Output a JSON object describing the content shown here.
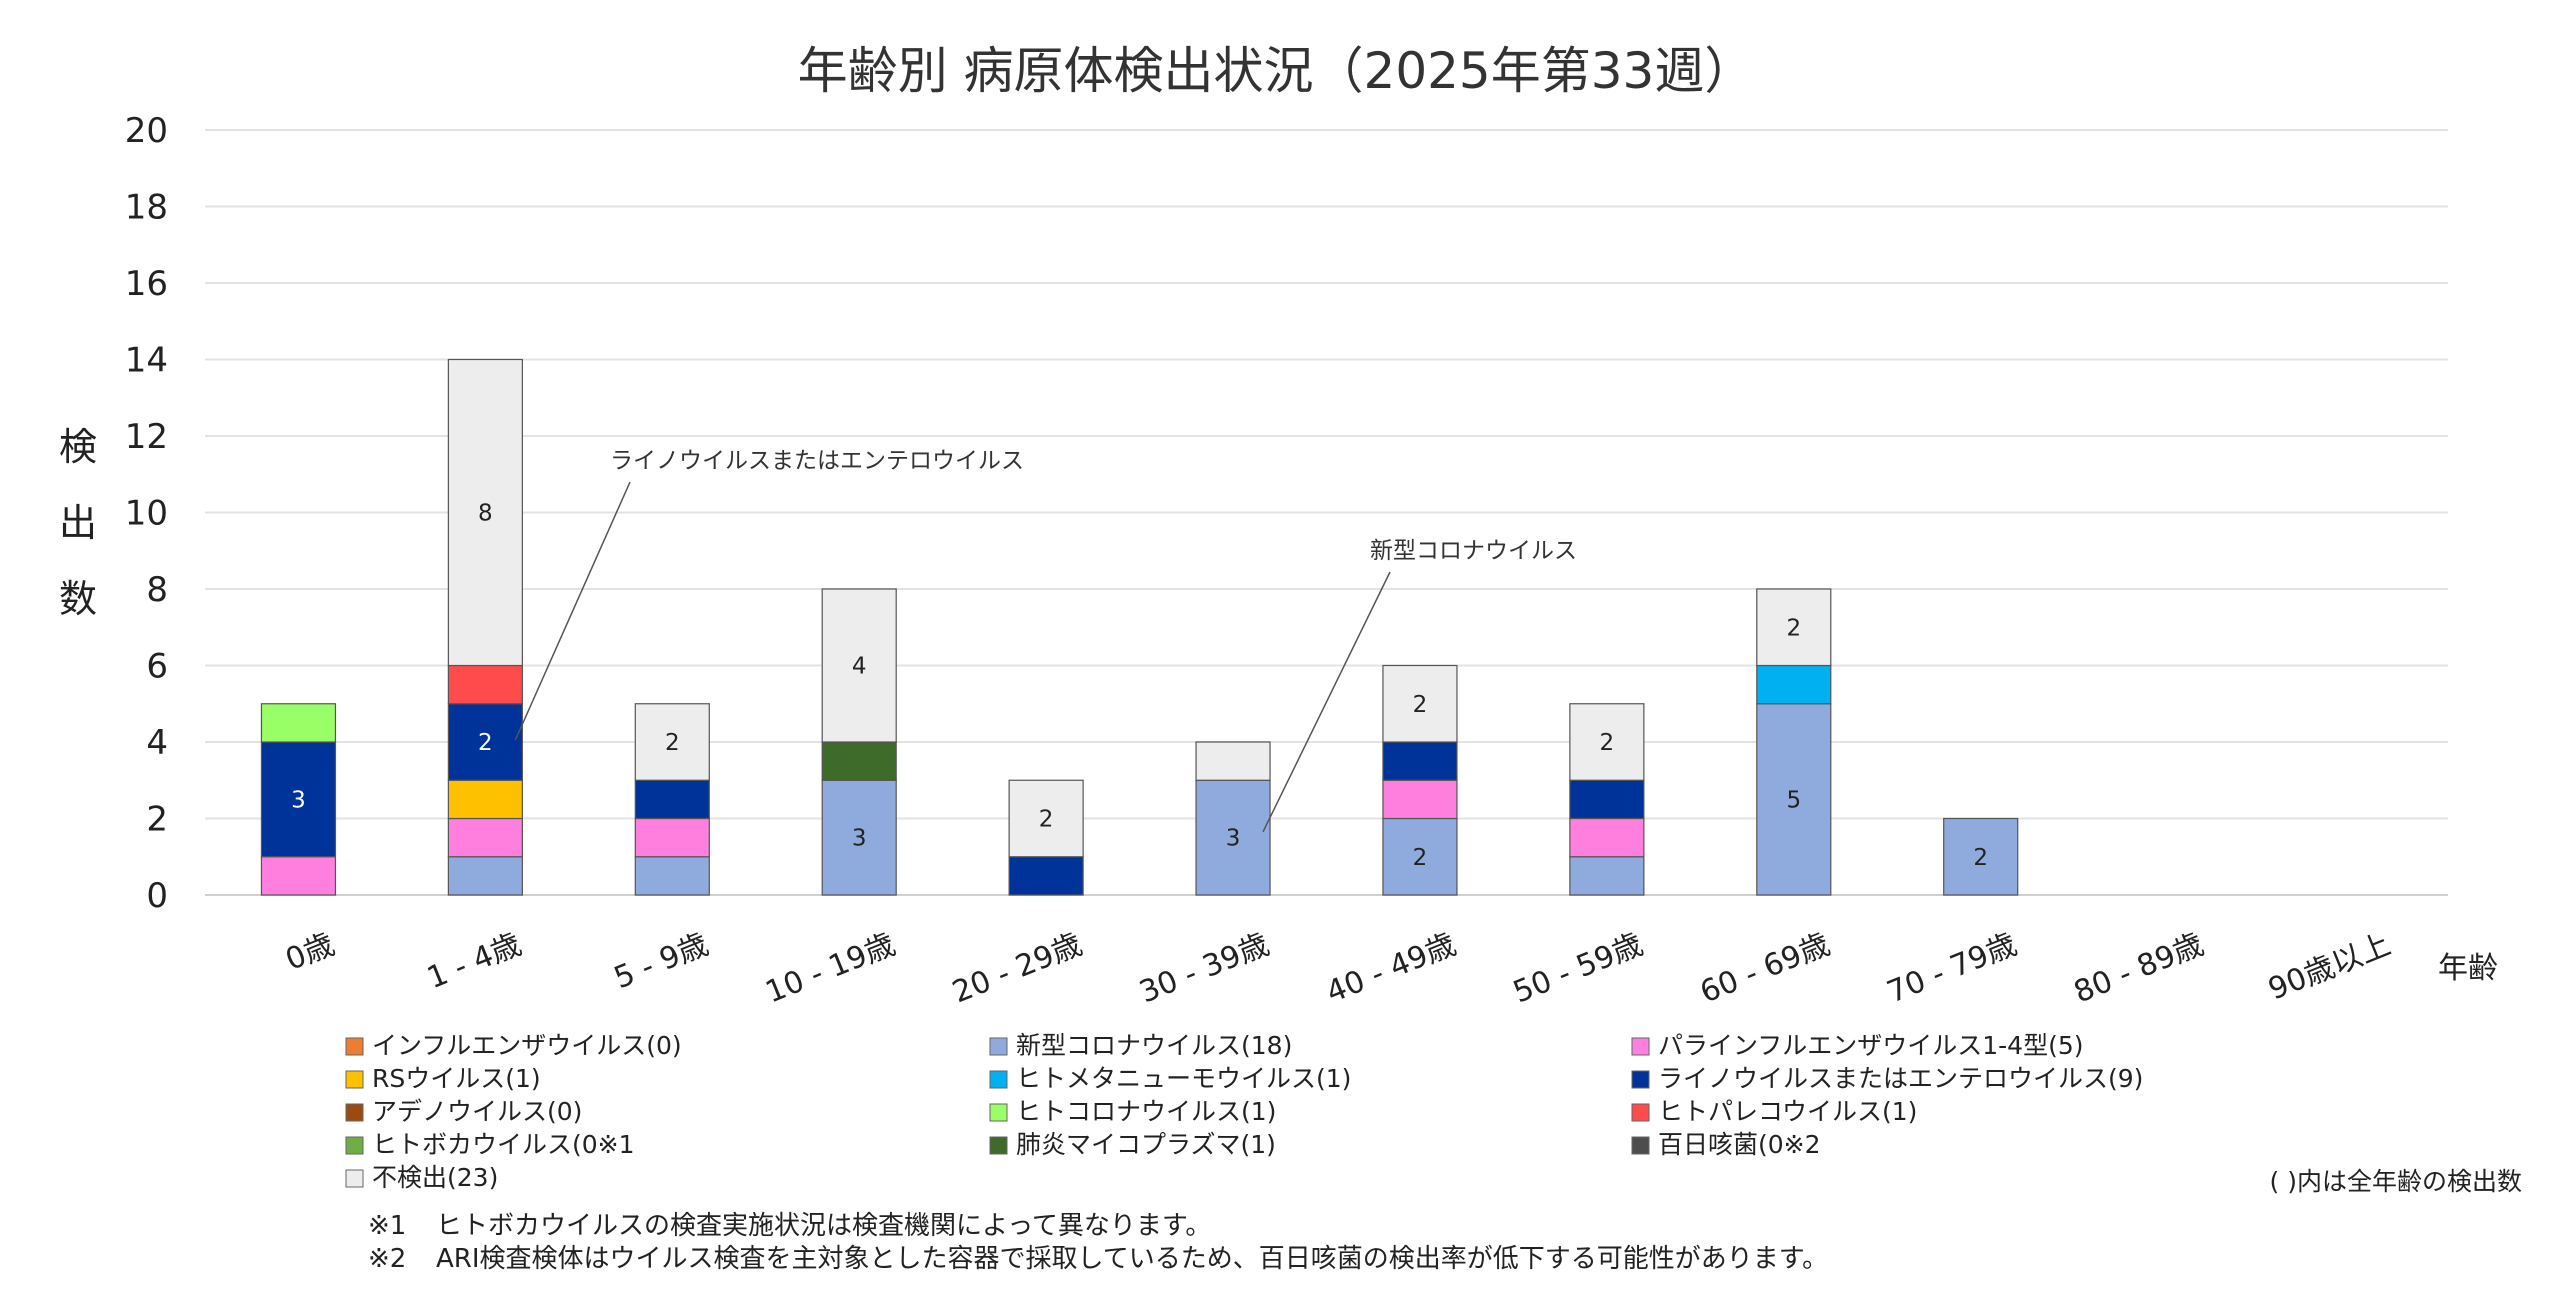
{
  "chart_data": {
    "type": "bar",
    "stacked": true,
    "title": "年齢別 病原体検出状況（2025年第33週）",
    "ylabel": "検出数",
    "xlabel": "年齢",
    "ylim": [
      0,
      20
    ],
    "yticks": [
      0,
      2,
      4,
      6,
      8,
      10,
      12,
      14,
      16,
      18,
      20
    ],
    "grid": true,
    "categories": [
      "0歳",
      "1 - 4歳",
      "5 - 9歳",
      "10 - 19歳",
      "20 - 29歳",
      "30 - 39歳",
      "40 - 49歳",
      "50 - 59歳",
      "60 - 69歳",
      "70 - 79歳",
      "80 - 89歳",
      "90歳以上"
    ],
    "series": [
      {
        "name": "インフルエンザウイルス(0)",
        "color": "#ED7D31",
        "values": [
          0,
          0,
          0,
          0,
          0,
          0,
          0,
          0,
          0,
          0,
          0,
          0
        ],
        "labels": [
          "",
          "",
          "",
          "",
          "",
          "",
          "",
          "",
          "",
          "",
          "",
          ""
        ],
        "label_color": "#ffffff"
      },
      {
        "name": "新型コロナウイルス(18)",
        "color": "#8FAADC",
        "values": [
          0,
          1,
          1,
          3,
          0,
          3,
          2,
          1,
          5,
          2,
          0,
          0
        ],
        "labels": [
          "",
          "",
          "",
          "3",
          "",
          "3",
          "2",
          "",
          "5",
          "2",
          "",
          ""
        ],
        "label_color": "#222222"
      },
      {
        "name": "パラインフルエンザウイルス1-4型(5)",
        "color": "#FF7FDF",
        "values": [
          1,
          1,
          1,
          0,
          0,
          0,
          1,
          1,
          0,
          0,
          0,
          0
        ],
        "labels": [
          "",
          "",
          "",
          "",
          "",
          "",
          "",
          "",
          "",
          "",
          "",
          ""
        ],
        "label_color": "#222222"
      },
      {
        "name": "RSウイルス(1)",
        "color": "#FFC000",
        "values": [
          0,
          1,
          0,
          0,
          0,
          0,
          0,
          0,
          0,
          0,
          0,
          0
        ],
        "labels": [
          "",
          "",
          "",
          "",
          "",
          "",
          "",
          "",
          "",
          "",
          "",
          ""
        ],
        "label_color": "#222222"
      },
      {
        "name": "ヒトメタニューモウイルス(1)",
        "color": "#00B0F0",
        "values": [
          0,
          0,
          0,
          0,
          0,
          0,
          0,
          0,
          1,
          0,
          0,
          0
        ],
        "labels": [
          "",
          "",
          "",
          "",
          "",
          "",
          "",
          "",
          "",
          "",
          "",
          ""
        ],
        "label_color": "#222222"
      },
      {
        "name": "ライノウイルスまたはエンテロウイルス(9)",
        "color": "#003399",
        "values": [
          3,
          2,
          1,
          0,
          1,
          0,
          1,
          1,
          0,
          0,
          0,
          0
        ],
        "labels": [
          "3",
          "2",
          "",
          "",
          "",
          "",
          "",
          "",
          "",
          "",
          "",
          ""
        ],
        "label_color": "#ffffff"
      },
      {
        "name": "アデノウイルス(0)",
        "color": "#9C4A0E",
        "values": [
          0,
          0,
          0,
          0,
          0,
          0,
          0,
          0,
          0,
          0,
          0,
          0
        ],
        "labels": [
          "",
          "",
          "",
          "",
          "",
          "",
          "",
          "",
          "",
          "",
          "",
          ""
        ],
        "label_color": "#ffffff"
      },
      {
        "name": "ヒトコロナウイルス(1)",
        "color": "#99FF66",
        "values": [
          1,
          0,
          0,
          0,
          0,
          0,
          0,
          0,
          0,
          0,
          0,
          0
        ],
        "labels": [
          "",
          "",
          "",
          "",
          "",
          "",
          "",
          "",
          "",
          "",
          "",
          ""
        ],
        "label_color": "#222222"
      },
      {
        "name": "ヒトパレコウイルス(1)",
        "color": "#FF4B4B",
        "values": [
          0,
          1,
          0,
          0,
          0,
          0,
          0,
          0,
          0,
          0,
          0,
          0
        ],
        "labels": [
          "",
          "",
          "",
          "",
          "",
          "",
          "",
          "",
          "",
          "",
          "",
          ""
        ],
        "label_color": "#222222"
      },
      {
        "name": "ヒトボカウイルス(0※1",
        "color": "#70AD47",
        "values": [
          0,
          0,
          0,
          0,
          0,
          0,
          0,
          0,
          0,
          0,
          0,
          0
        ],
        "labels": [
          "",
          "",
          "",
          "",
          "",
          "",
          "",
          "",
          "",
          "",
          "",
          ""
        ],
        "label_color": "#222222"
      },
      {
        "name": "肺炎マイコプラズマ(1)",
        "color": "#3F6B2A",
        "values": [
          0,
          0,
          0,
          1,
          0,
          0,
          0,
          0,
          0,
          0,
          0,
          0
        ],
        "labels": [
          "",
          "",
          "",
          "",
          "",
          "",
          "",
          "",
          "",
          "",
          "",
          ""
        ],
        "label_color": "#ffffff"
      },
      {
        "name": "百日咳菌(0※2",
        "color": "#4D4D4D",
        "values": [
          0,
          0,
          0,
          0,
          0,
          0,
          0,
          0,
          0,
          0,
          0,
          0
        ],
        "labels": [
          "",
          "",
          "",
          "",
          "",
          "",
          "",
          "",
          "",
          "",
          "",
          ""
        ],
        "label_color": "#ffffff"
      },
      {
        "name": "不検出(23)",
        "color": "#EDEDED",
        "values": [
          0,
          8,
          2,
          4,
          2,
          1,
          2,
          2,
          2,
          0,
          0,
          0
        ],
        "labels": [
          "",
          "8",
          "2",
          "4",
          "2",
          "",
          "2",
          "2",
          "2",
          "",
          "",
          ""
        ],
        "label_color": "#222222"
      }
    ],
    "callouts": [
      {
        "text": "ライノウイルスまたはエンテロウイルス",
        "category_index": 1,
        "value": 4
      },
      {
        "text": "新型コロナウイルス",
        "category_index": 5,
        "value": 1.6
      }
    ],
    "legend_note": "( )内は全年齢の検出数"
  },
  "notes": [
    {
      "mark": "※1",
      "text": "ヒトボカウイルスの検査実施状況は検査機関によって異なります。"
    },
    {
      "mark": "※2",
      "text": "ARI検査検体はウイルス検査を主対象とした容器で採取しているため、百日咳菌の検出率が低下する可能性があります。"
    }
  ]
}
